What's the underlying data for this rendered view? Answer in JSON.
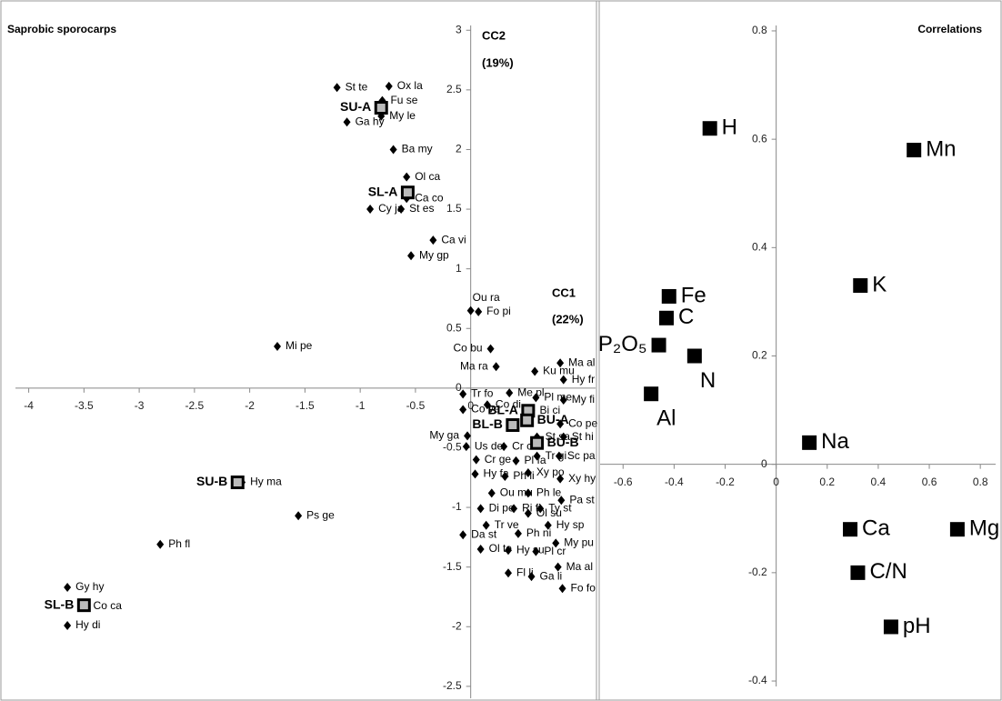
{
  "chart_data": [
    {
      "type": "scatter",
      "title": "Saprobic sporocarps",
      "annotations": [
        "CC2",
        "(19%)",
        "CC1",
        "(22%)"
      ],
      "xlim": [
        -4.12,
        1.13
      ],
      "ylim": [
        -2.6,
        3.04
      ],
      "xticks": [
        -4,
        -3.5,
        -3,
        -2.5,
        -2,
        -1.5,
        -1,
        -0.5,
        0
      ],
      "yticks": [
        -2.5,
        -2,
        -1.5,
        -1,
        -0.5,
        0,
        0.5,
        1,
        1.5,
        2,
        2.5,
        3
      ],
      "series": [
        {
          "marker": "square-outline",
          "color": "#000000",
          "labels": [
            "SU-A",
            "SL-A",
            "SU-B",
            "SL-B",
            "BL-A",
            "BL-B",
            "BU-A",
            "BU-B"
          ],
          "x": [
            -0.81,
            -0.57,
            -2.11,
            -3.5,
            0.52,
            0.38,
            0.51,
            0.6
          ],
          "values": [
            2.35,
            1.64,
            -0.79,
            -1.82,
            -0.19,
            -0.31,
            -0.27,
            -0.46
          ]
        },
        {
          "marker": "diamond",
          "color": "#000000",
          "labels": [
            "Ba my",
            "Ca vi",
            "Ou ra",
            "Fo pi",
            "Mi pe",
            "Co bu",
            "Ma ra",
            "My ga",
            "Ps ge",
            "Ph fl",
            "St te",
            "Ox la",
            "Fu se",
            "My le",
            "Ga hy",
            "Ol ca",
            "Ca co",
            "Cy ja",
            "St es",
            "My gp",
            "Hy ma",
            "Gy hy",
            "Co ca",
            "Hy di",
            "Ma al",
            "Hy fr",
            "Ku mu",
            "Tr fo",
            "Me pl",
            "Pl me",
            "My fi",
            "Co ve",
            "Co di",
            "Bi ci",
            "Co pe",
            "St sa",
            "St hi",
            "Us de",
            "Cr ce",
            "Tr gi",
            "Sc pa",
            "Cr ge",
            "Pl fa",
            "Hy fa",
            "Ph li",
            "Xy po",
            "Xy hy",
            "Ou mu",
            "Ph le",
            "Pa st",
            "Di pe",
            "Ri fi",
            "Ol su",
            "Ty st",
            "Hy sp",
            "Tr ve",
            "Ph ni",
            "Da st",
            "My pu",
            "Ol te",
            "Hy su",
            "Pl cr",
            "Ma al",
            "Fl li",
            "Ga li",
            "Fo fo"
          ],
          "x": [
            -0.7,
            -0.34,
            0.0,
            0.07,
            -1.75,
            0.18,
            0.23,
            -0.03,
            -1.56,
            -2.81,
            -1.21,
            -0.74,
            -0.8,
            -0.81,
            -1.12,
            -0.58,
            -0.58,
            -0.91,
            -0.63,
            -0.54,
            -2.07,
            -3.65,
            -3.49,
            -3.65,
            0.81,
            0.84,
            0.58,
            -0.07,
            0.35,
            0.59,
            0.84,
            -0.07,
            0.15,
            0.55,
            0.81,
            0.6,
            0.84,
            -0.04,
            0.3,
            0.6,
            0.8,
            0.05,
            0.41,
            0.04,
            0.31,
            0.52,
            0.81,
            0.19,
            0.52,
            0.82,
            0.09,
            0.39,
            0.52,
            0.63,
            0.7,
            0.14,
            0.43,
            -0.07,
            0.77,
            0.09,
            0.34,
            0.59,
            0.79,
            0.34,
            0.55,
            0.83
          ],
          "values": [
            2.0,
            1.24,
            0.65,
            0.64,
            0.35,
            0.33,
            0.18,
            -0.4,
            -1.07,
            -1.31,
            2.52,
            2.53,
            2.41,
            2.28,
            2.23,
            1.77,
            1.59,
            1.5,
            1.5,
            1.11,
            -0.79,
            -1.67,
            -1.83,
            -1.99,
            0.21,
            0.07,
            0.14,
            -0.05,
            -0.04,
            -0.08,
            -0.1,
            -0.18,
            -0.14,
            -0.19,
            -0.3,
            -0.41,
            -0.41,
            -0.49,
            -0.49,
            -0.57,
            -0.57,
            -0.6,
            -0.61,
            -0.72,
            -0.74,
            -0.71,
            -0.76,
            -0.88,
            -0.88,
            -0.94,
            -1.01,
            -1.01,
            -1.05,
            -1.01,
            -1.15,
            -1.15,
            -1.22,
            -1.23,
            -1.3,
            -1.35,
            -1.36,
            -1.37,
            -1.5,
            -1.55,
            -1.58,
            -1.68
          ]
        }
      ]
    },
    {
      "type": "scatter",
      "title": "Correlations",
      "xlim": [
        -0.69,
        0.86
      ],
      "ylim": [
        -0.41,
        0.81
      ],
      "xticks": [
        -0.6,
        -0.4,
        -0.2,
        0,
        0.2,
        0.4,
        0.6,
        0.8
      ],
      "yticks": [
        -0.4,
        -0.2,
        0,
        0.2,
        0.4,
        0.6,
        0.8
      ],
      "series": [
        {
          "marker": "square",
          "color": "#000000",
          "labels": [
            "H",
            "Mn",
            "Fe",
            "C",
            "P₂O₅",
            "N",
            "Al",
            "K",
            "Na",
            "Ca",
            "Mg",
            "C/N",
            "pH"
          ],
          "x": [
            -0.26,
            0.54,
            -0.42,
            -0.43,
            -0.46,
            -0.32,
            -0.49,
            0.33,
            0.13,
            0.29,
            0.71,
            0.32,
            0.45
          ],
          "values": [
            0.62,
            0.58,
            0.31,
            0.27,
            0.22,
            0.2,
            0.13,
            0.33,
            0.04,
            -0.12,
            -0.12,
            -0.2,
            -0.3
          ]
        }
      ]
    }
  ]
}
